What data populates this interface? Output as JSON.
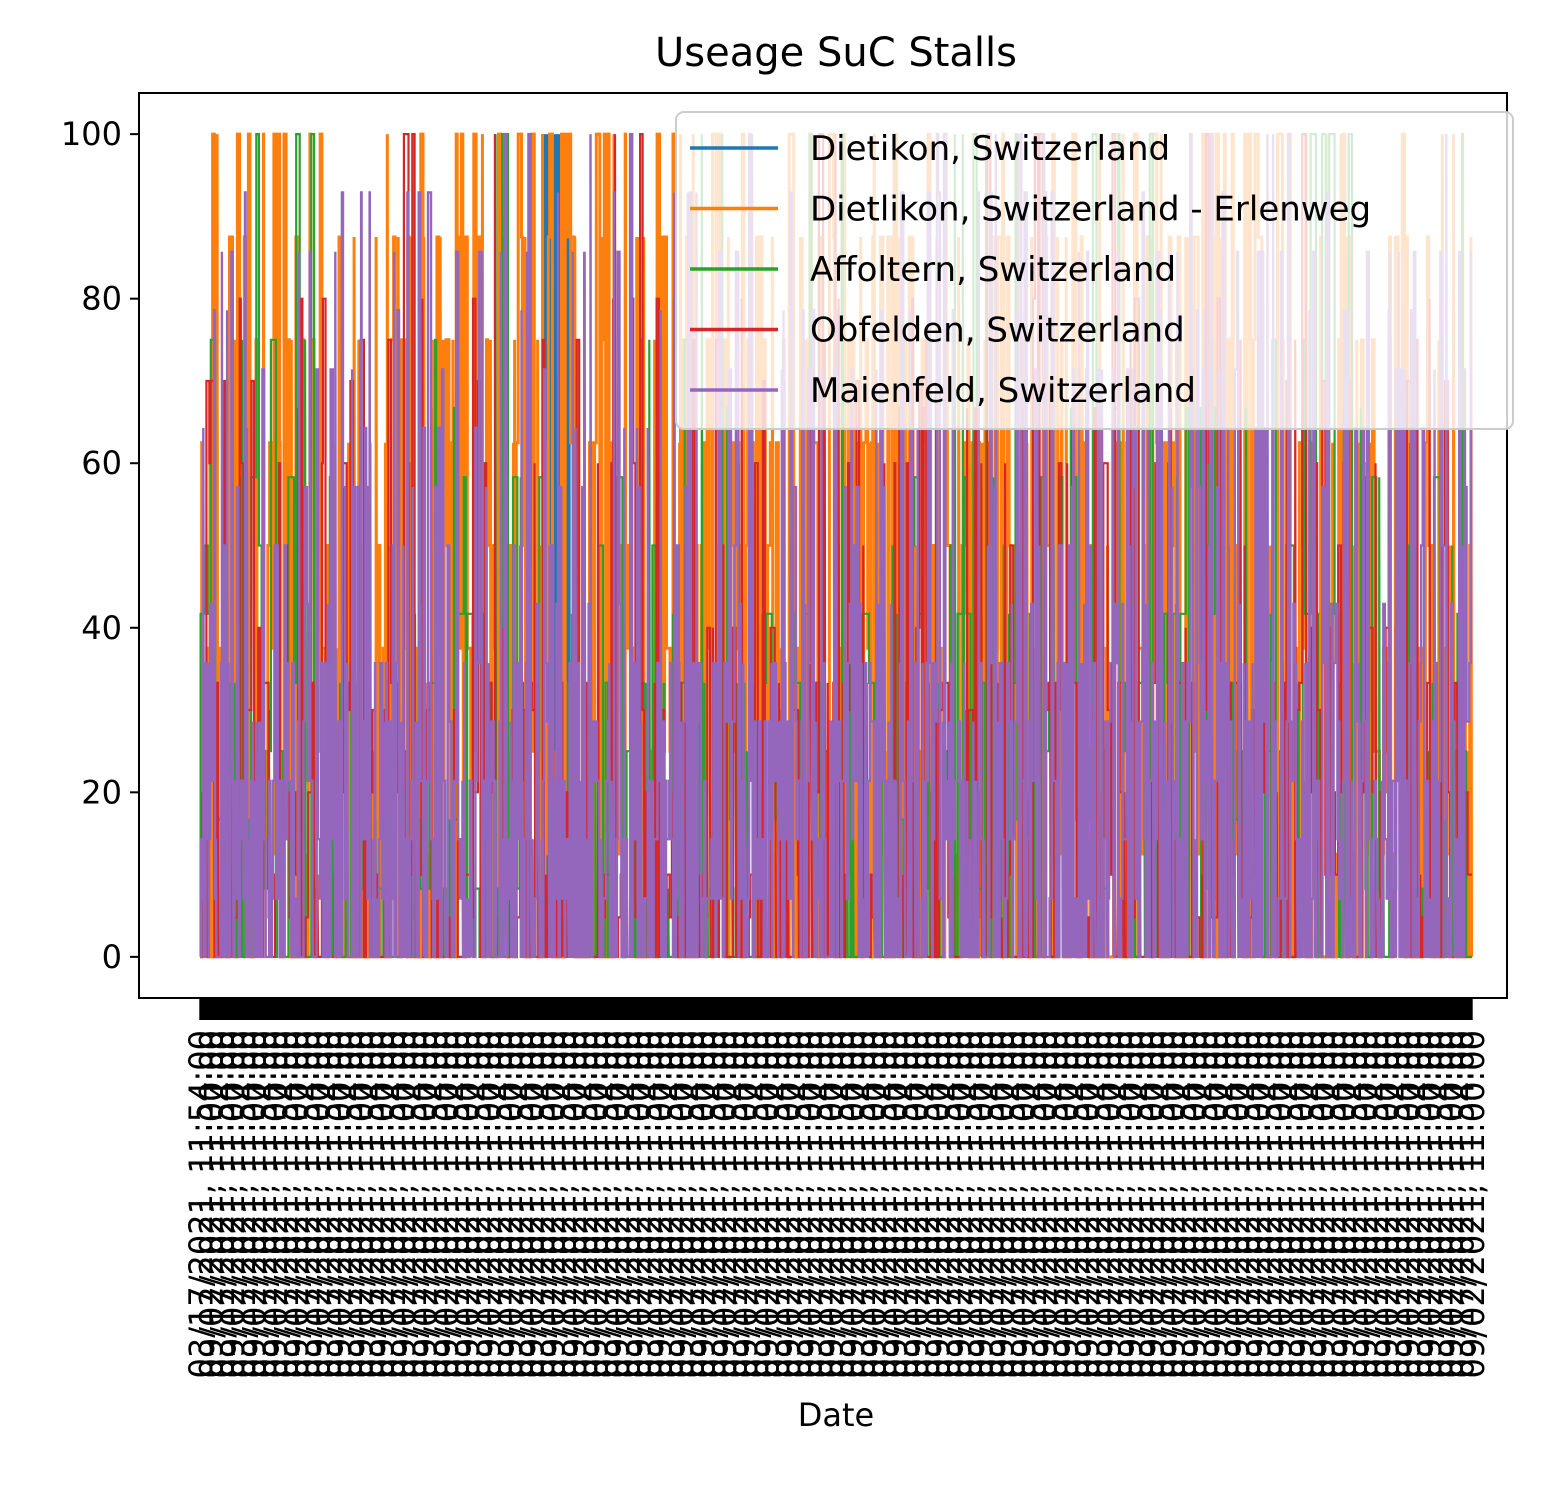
{
  "chart_data": {
    "type": "line",
    "title": "Useage SuC Stalls",
    "xlabel": "Date",
    "ylabel": "",
    "ylim": [
      -5,
      105
    ],
    "yticks": [
      0,
      20,
      40,
      60,
      80,
      100
    ],
    "grid": false,
    "legend_position": "top-right",
    "x_tick_count": 1100,
    "x_tick_labels_legible": false,
    "x_tick_label_fragments": [
      "03/17/2021, 11:54:00",
      "09/02/2021, 11:00:00"
    ],
    "series": [
      {
        "name": "Dietikon, Switzerland",
        "color": "#1f77b4",
        "value_levels": [
          0,
          100
        ],
        "spikes_to_100_between_x_fraction": [
          0.27,
          0.29
        ]
      },
      {
        "name": "Dietlikon, Switzerland - Erlenweg",
        "color": "#ff7f0e",
        "value_levels": [
          0,
          12.5,
          25,
          37.5,
          50,
          62.5,
          75,
          87.5,
          100
        ],
        "typical_range": [
          0,
          100
        ]
      },
      {
        "name": "Affoltern, Switzerland",
        "color": "#2ca02c",
        "value_levels": [
          0,
          8.3,
          16.7,
          25,
          33.3,
          41.7,
          50,
          58.3,
          66.7,
          75,
          100
        ],
        "typical_range": [
          0,
          100
        ]
      },
      {
        "name": "Obfelden, Switzerland",
        "color": "#d62728",
        "value_levels": [
          0,
          4.8,
          10,
          20,
          30,
          33.3,
          40,
          50,
          60,
          66.7,
          70,
          75,
          80,
          100
        ],
        "typical_range": [
          0,
          100
        ],
        "flat_block": {
          "value": 4.8,
          "x_fraction": [
            0.27,
            0.305
          ]
        }
      },
      {
        "name": "Maienfeld, Switzerland",
        "color": "#9467bd",
        "value_levels": [
          0,
          7.1,
          14.3,
          21.4,
          28.6,
          35.7,
          42.9,
          50,
          57.1,
          64.3,
          71.4,
          78.6,
          85.7,
          92.9,
          100
        ],
        "typical_range": [
          0,
          100
        ]
      }
    ]
  }
}
